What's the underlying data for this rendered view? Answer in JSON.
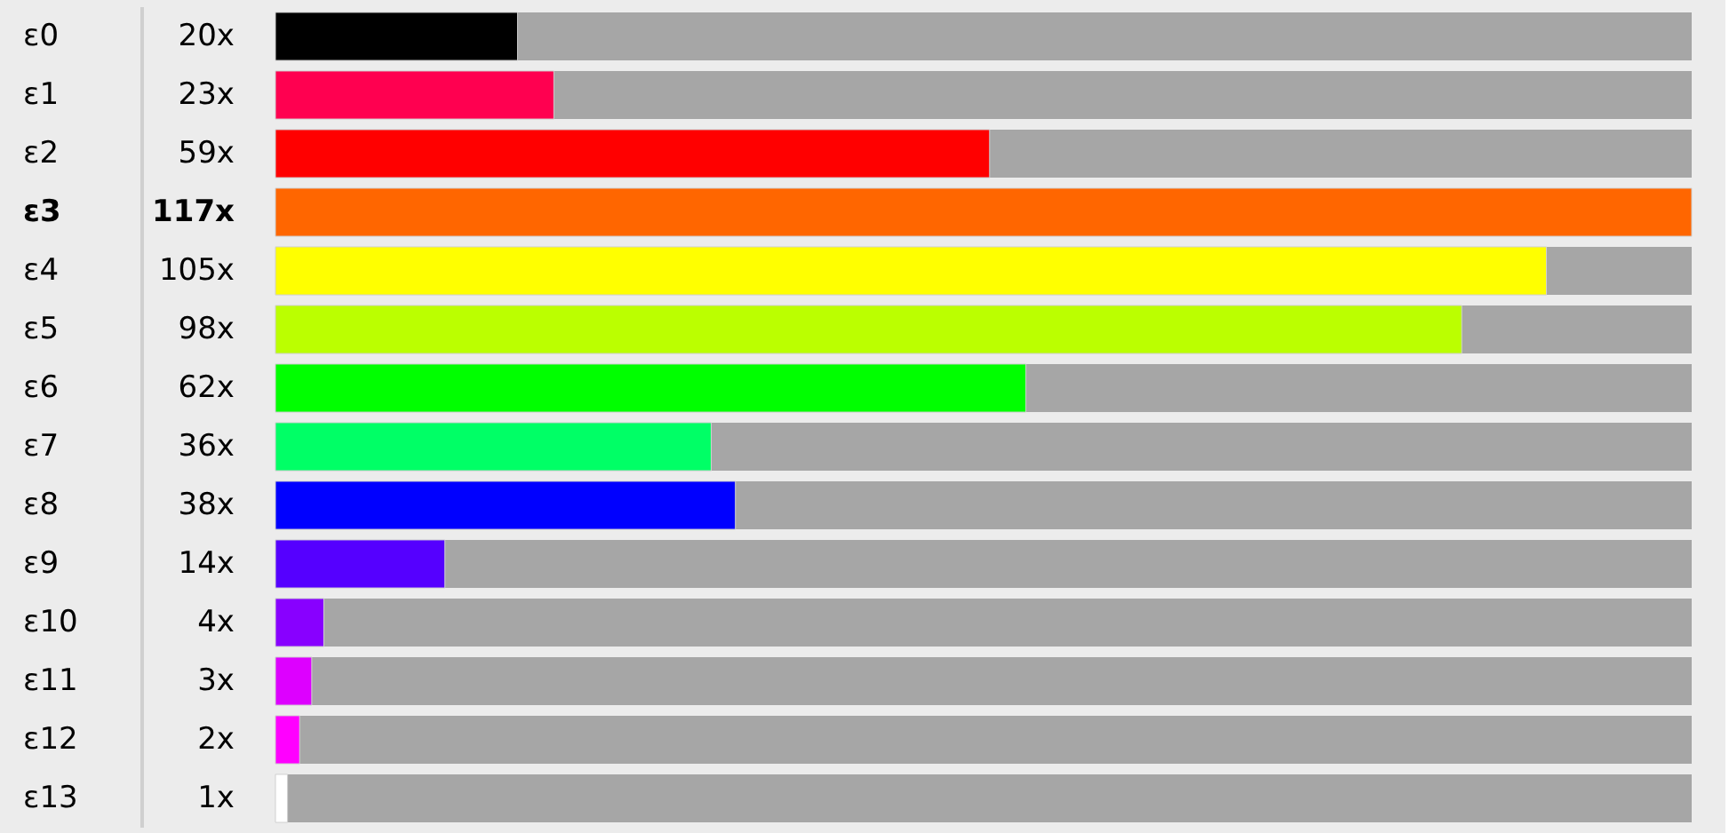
{
  "chart_data": {
    "type": "bar",
    "orientation": "horizontal",
    "categories": [
      "ε0",
      "ε1",
      "ε2",
      "ε3",
      "ε4",
      "ε5",
      "ε6",
      "ε7",
      "ε8",
      "ε9",
      "ε10",
      "ε11",
      "ε12",
      "ε13"
    ],
    "values": [
      20,
      23,
      59,
      117,
      105,
      98,
      62,
      36,
      38,
      14,
      4,
      3,
      2,
      1
    ],
    "value_labels": [
      "20x",
      "23x",
      "59x",
      "117x",
      "105x",
      "98x",
      "62x",
      "36x",
      "38x",
      "14x",
      "4x",
      "3x",
      "2x",
      "1x"
    ],
    "colors": [
      "#000000",
      "#ff0050",
      "#ff0000",
      "#ff6600",
      "#ffff00",
      "#bbff00",
      "#00ff00",
      "#00ff66",
      "#0000ff",
      "#5500ff",
      "#8800ff",
      "#dd00ff",
      "#ff00ff",
      "#ffffff"
    ],
    "xlim": [
      0,
      117
    ]
  }
}
